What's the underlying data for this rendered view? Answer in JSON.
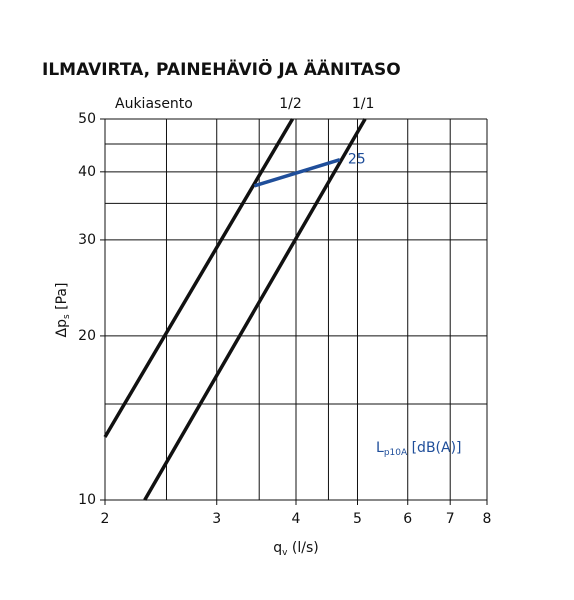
{
  "chart_data": {
    "type": "line",
    "title": "ILMAVIRTA, PAINEHÄVIÖ JA ÄÄNITASO",
    "subtitle": "Aukiasento",
    "x_label": {
      "main": "q",
      "sub": "v",
      "rest": " (l/s)"
    },
    "y_label": {
      "main": "Δp",
      "sub": "s",
      "rest": " [Pa]"
    },
    "annotation": {
      "main": "L",
      "sub": "p10A",
      "rest": " [dB(A)]"
    },
    "log_x": true,
    "log_y": true,
    "xlim": [
      2,
      8
    ],
    "ylim": [
      10,
      50
    ],
    "xticks": [
      2,
      3,
      4,
      5,
      6,
      7,
      8
    ],
    "yticks": [
      10,
      20,
      30,
      40,
      50
    ],
    "xgrid": [
      2,
      2.5,
      3,
      3.5,
      4,
      4.5,
      5,
      6,
      7,
      8
    ],
    "ygrid": [
      10,
      15,
      20,
      30,
      35,
      40,
      45,
      50
    ],
    "series": [
      {
        "name": "1/2",
        "color": "#111111",
        "x": [
          2,
          3.95
        ],
        "values": [
          13.05,
          50
        ]
      },
      {
        "name": "1/1",
        "color": "#111111",
        "x": [
          2.31,
          5.14
        ],
        "values": [
          10,
          50
        ]
      },
      {
        "name": "25",
        "color": "#1f4e9a",
        "x": [
          3.44,
          4.69
        ],
        "values": [
          37.7,
          42.1
        ]
      }
    ]
  }
}
